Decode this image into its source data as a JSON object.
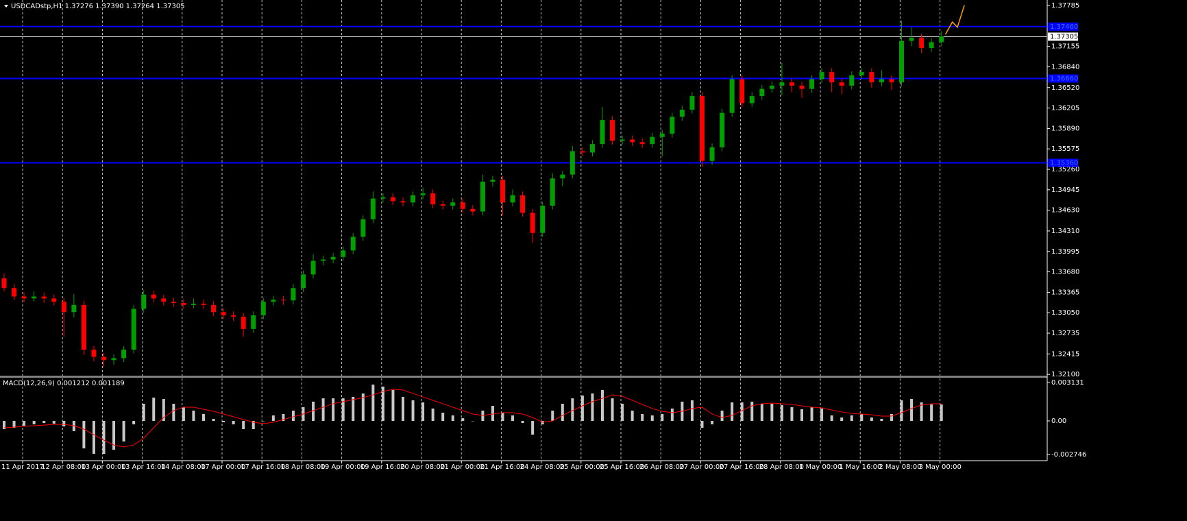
{
  "chart_data": [
    {
      "type": "candlestick",
      "title": "USDCADstp,H1  1.37276 1.37390 1.37264 1.37305",
      "ylim": [
        1.3208,
        1.3787
      ],
      "yticks": [
        1.37785,
        1.37155,
        {
          "value": 1.3684,
          "label": "1.36840"
        },
        {
          "value": 1.3652,
          "label": "1.36520"
        },
        1.36205,
        {
          "value": 1.3589,
          "label": "1.35890"
        },
        1.35575,
        {
          "value": 1.3526,
          "label": "1.35260"
        },
        1.34945,
        {
          "value": 1.3463,
          "label": "1.34630"
        },
        {
          "value": 1.3431,
          "label": "1.34310"
        },
        1.33995,
        {
          "value": 1.3368,
          "label": "1.33680"
        },
        1.33365,
        {
          "value": 1.3305,
          "label": "1.33050"
        },
        1.32735,
        1.32415,
        {
          "value": 1.321,
          "label": "1.32100"
        }
      ],
      "xticks": [
        {
          "value": 0,
          "label": "11 Apr 2017"
        },
        {
          "value": 4,
          "label": "12 Apr 08:00"
        },
        {
          "value": 8,
          "label": "13 Apr 00:00"
        },
        {
          "value": 12,
          "label": "13 Apr 16:00"
        },
        {
          "value": 16,
          "label": "14 Apr 08:00"
        },
        {
          "value": 20,
          "label": "17 Apr 00:00"
        },
        {
          "value": 24,
          "label": "17 Apr 16:00"
        },
        {
          "value": 28,
          "label": "18 Apr 08:00"
        },
        {
          "value": 32,
          "label": "19 Apr 00:00"
        },
        {
          "value": 36,
          "label": "19 Apr 16:00"
        },
        {
          "value": 40,
          "label": "20 Apr 08:00"
        },
        {
          "value": 44,
          "label": "21 Apr 00:00"
        },
        {
          "value": 48,
          "label": "21 Apr 16:00"
        },
        {
          "value": 52,
          "label": "24 Apr 08:00"
        },
        {
          "value": 56,
          "label": "25 Apr 00:00"
        },
        {
          "value": 60,
          "label": "25 Apr 16:00"
        },
        {
          "value": 64,
          "label": "26 Apr 08:00"
        },
        {
          "value": 68,
          "label": "27 Apr 00:00"
        },
        {
          "value": 72,
          "label": "27 Apr 16:00"
        },
        {
          "value": 76,
          "label": "28 Apr 08:00"
        },
        {
          "value": 80,
          "label": "1 May 00:00"
        },
        {
          "value": 84,
          "label": "1 May 16:00"
        },
        {
          "value": 88,
          "label": "2 May 08:00"
        },
        {
          "value": 92,
          "label": "3 May 00:00"
        }
      ],
      "grid": true,
      "up_color": "#00a000",
      "down_color": "#ff0000",
      "ohlc": [
        [
          1.3358,
          1.3366,
          1.3338,
          1.3343
        ],
        [
          1.3343,
          1.3349,
          1.3325,
          1.333
        ],
        [
          1.333,
          1.3336,
          1.3321,
          1.3327
        ],
        [
          1.3327,
          1.3338,
          1.3322,
          1.333
        ],
        [
          1.333,
          1.3336,
          1.332,
          1.3327
        ],
        [
          1.3327,
          1.3333,
          1.3316,
          1.3322
        ],
        [
          1.3322,
          1.3328,
          1.3268,
          1.3306
        ],
        [
          1.3306,
          1.3334,
          1.3298,
          1.3317
        ],
        [
          1.3317,
          1.3323,
          1.324,
          1.3248
        ],
        [
          1.3248,
          1.3254,
          1.323,
          1.3237
        ],
        [
          1.3237,
          1.3243,
          1.3222,
          1.3232
        ],
        [
          1.3232,
          1.3241,
          1.3225,
          1.3235
        ],
        [
          1.3235,
          1.3254,
          1.3229,
          1.3248
        ],
        [
          1.3248,
          1.3317,
          1.3242,
          1.3311
        ],
        [
          1.3311,
          1.334,
          1.3305,
          1.3333
        ],
        [
          1.3333,
          1.3339,
          1.3321,
          1.3327
        ],
        [
          1.3327,
          1.3333,
          1.3316,
          1.3322
        ],
        [
          1.3322,
          1.3328,
          1.3314,
          1.332
        ],
        [
          1.332,
          1.3326,
          1.3311,
          1.3317
        ],
        [
          1.3317,
          1.3327,
          1.3312,
          1.3319
        ],
        [
          1.3319,
          1.3325,
          1.3311,
          1.3317
        ],
        [
          1.3317,
          1.3323,
          1.33,
          1.3306
        ],
        [
          1.3306,
          1.3312,
          1.3295,
          1.3301
        ],
        [
          1.3301,
          1.3307,
          1.3292,
          1.3299
        ],
        [
          1.3299,
          1.3305,
          1.3268,
          1.328
        ],
        [
          1.328,
          1.3307,
          1.3274,
          1.3301
        ],
        [
          1.3301,
          1.3328,
          1.3295,
          1.3322
        ],
        [
          1.3322,
          1.3331,
          1.3316,
          1.3325
        ],
        [
          1.3325,
          1.3331,
          1.3317,
          1.3324
        ],
        [
          1.3324,
          1.3349,
          1.3318,
          1.3343
        ],
        [
          1.3343,
          1.337,
          1.3337,
          1.3364
        ],
        [
          1.3364,
          1.3395,
          1.3358,
          1.3385
        ],
        [
          1.3385,
          1.3393,
          1.3378,
          1.3387
        ],
        [
          1.3387,
          1.3397,
          1.3381,
          1.3391
        ],
        [
          1.3391,
          1.3407,
          1.3385,
          1.3401
        ],
        [
          1.3401,
          1.3428,
          1.3395,
          1.3422
        ],
        [
          1.3422,
          1.3455,
          1.3416,
          1.3449
        ],
        [
          1.3449,
          1.3492,
          1.3443,
          1.3481
        ],
        [
          1.3481,
          1.3489,
          1.3475,
          1.3483
        ],
        [
          1.3483,
          1.3489,
          1.3471,
          1.3477
        ],
        [
          1.3477,
          1.3483,
          1.3469,
          1.3475
        ],
        [
          1.3475,
          1.3492,
          1.3469,
          1.3486
        ],
        [
          1.3486,
          1.3498,
          1.348,
          1.3489
        ],
        [
          1.3489,
          1.3495,
          1.3466,
          1.3472
        ],
        [
          1.3472,
          1.3478,
          1.3464,
          1.347
        ],
        [
          1.347,
          1.3481,
          1.3464,
          1.3475
        ],
        [
          1.3475,
          1.3481,
          1.3459,
          1.3465
        ],
        [
          1.3465,
          1.3471,
          1.3455,
          1.3461
        ],
        [
          1.3461,
          1.3518,
          1.3455,
          1.3507
        ],
        [
          1.3507,
          1.3516,
          1.3499,
          1.351
        ],
        [
          1.351,
          1.3516,
          1.3455,
          1.3475
        ],
        [
          1.3475,
          1.3495,
          1.3469,
          1.3486
        ],
        [
          1.3486,
          1.3492,
          1.3453,
          1.3459
        ],
        [
          1.3459,
          1.3465,
          1.3413,
          1.3428
        ],
        [
          1.3428,
          1.3476,
          1.3422,
          1.347
        ],
        [
          1.347,
          1.352,
          1.3464,
          1.3512
        ],
        [
          1.3512,
          1.3524,
          1.35,
          1.3518
        ],
        [
          1.3518,
          1.3562,
          1.3512,
          1.3554
        ],
        [
          1.3554,
          1.356,
          1.3546,
          1.3552
        ],
        [
          1.3552,
          1.3571,
          1.3546,
          1.3565
        ],
        [
          1.3565,
          1.3622,
          1.3559,
          1.3602
        ],
        [
          1.3602,
          1.3608,
          1.3564,
          1.357
        ],
        [
          1.357,
          1.3578,
          1.3564,
          1.3572
        ],
        [
          1.3572,
          1.3578,
          1.3562,
          1.3568
        ],
        [
          1.3568,
          1.3574,
          1.3559,
          1.3565
        ],
        [
          1.3565,
          1.3582,
          1.3559,
          1.3576
        ],
        [
          1.3576,
          1.3587,
          1.3546,
          1.3581
        ],
        [
          1.3581,
          1.3613,
          1.3575,
          1.3607
        ],
        [
          1.3607,
          1.3624,
          1.3601,
          1.3618
        ],
        [
          1.3618,
          1.3645,
          1.3612,
          1.3639
        ],
        [
          1.3639,
          1.3645,
          1.353,
          1.3539
        ],
        [
          1.3539,
          1.3566,
          1.3533,
          1.356
        ],
        [
          1.356,
          1.3619,
          1.3554,
          1.3613
        ],
        [
          1.3613,
          1.3671,
          1.3607,
          1.3665
        ],
        [
          1.3665,
          1.3671,
          1.3622,
          1.3628
        ],
        [
          1.3628,
          1.3645,
          1.3622,
          1.3639
        ],
        [
          1.3639,
          1.3656,
          1.3633,
          1.365
        ],
        [
          1.365,
          1.3661,
          1.3644,
          1.3655
        ],
        [
          1.3655,
          1.369,
          1.364,
          1.366
        ],
        [
          1.366,
          1.3666,
          1.3645,
          1.3655
        ],
        [
          1.3655,
          1.3661,
          1.3636,
          1.365
        ],
        [
          1.365,
          1.3671,
          1.3644,
          1.3665
        ],
        [
          1.3665,
          1.3682,
          1.3659,
          1.3676
        ],
        [
          1.3676,
          1.3682,
          1.3645,
          1.366
        ],
        [
          1.366,
          1.3666,
          1.3642,
          1.3655
        ],
        [
          1.3655,
          1.3677,
          1.3649,
          1.3671
        ],
        [
          1.3671,
          1.3682,
          1.3665,
          1.3676
        ],
        [
          1.3676,
          1.3682,
          1.3652,
          1.366
        ],
        [
          1.366,
          1.3679,
          1.3654,
          1.3665
        ],
        [
          1.3665,
          1.3671,
          1.3648,
          1.366
        ],
        [
          1.366,
          1.3755,
          1.3654,
          1.3724
        ],
        [
          1.3724,
          1.3745,
          1.3716,
          1.3729
        ],
        [
          1.3729,
          1.3735,
          1.3705,
          1.3713
        ],
        [
          1.3713,
          1.3728,
          1.3707,
          1.3722
        ],
        [
          1.3722,
          1.3739,
          1.3716,
          1.3731
        ]
      ],
      "hlines": [
        {
          "value": 1.3746,
          "label": "1.37460",
          "color": "#0000ff"
        },
        {
          "value": 1.3666,
          "label": "1.36660",
          "color": "#0000ff"
        },
        {
          "value": 1.3536,
          "label": "1.35360",
          "color": "#0000ff"
        }
      ],
      "bid": {
        "value": 1.37305,
        "label": "1.37305",
        "color": "#c0c0c0"
      },
      "projection": {
        "x": [
          94.4,
          95.1,
          95.6,
          96.3
        ],
        "values": [
          1.3734,
          1.3753,
          1.3745,
          1.3779
        ],
        "color": "#ffa500"
      }
    },
    {
      "type": "macd",
      "title": "MACD(12,26,9) 0.001212 0.001189",
      "ylim": [
        -0.00324,
        0.00352
      ],
      "yticks": [
        0.003131,
        {
          "value": 0,
          "label": "0.00"
        },
        -0.002746
      ],
      "histogram": {
        "color": "#c8c8c8",
        "values": [
          -0.00067,
          -0.00056,
          -0.00039,
          -0.00028,
          -0.00017,
          -0.00022,
          -0.00045,
          -0.00084,
          -0.00224,
          -0.00268,
          -0.00268,
          -0.00235,
          -0.00168,
          -0.00028,
          0.0014,
          0.0019,
          0.00179,
          0.0014,
          0.00112,
          0.00084,
          0.00056,
          0.00017,
          -0.00011,
          -0.00028,
          -0.00067,
          -0.00067,
          0,
          0.00045,
          0.00056,
          0.00084,
          0.00112,
          0.00157,
          0.00184,
          0.00184,
          0.00184,
          0.00196,
          0.00224,
          0.00296,
          0.0028,
          0.00252,
          0.00196,
          0.00168,
          0.00151,
          0.00101,
          0.00067,
          0.00045,
          0.00022,
          0,
          0.00084,
          0.00123,
          0.00067,
          0.00045,
          -0.00017,
          -0.00112,
          -0.00028,
          0.00084,
          0.0014,
          0.00184,
          0.00207,
          0.00224,
          0.00252,
          0.00184,
          0.0014,
          0.00084,
          0.00056,
          0.00045,
          0.00056,
          0.00101,
          0.00157,
          0.00168,
          -0.00056,
          -0.00028,
          0.00084,
          0.00151,
          0.00151,
          0.00157,
          0.0014,
          0.0014,
          0.00129,
          0.00112,
          0.00095,
          0.00112,
          0.00101,
          0.00045,
          0.00028,
          0.00045,
          0.00056,
          0.00028,
          0.00017,
          0.00056,
          0.00168,
          0.00179,
          0.00151,
          0.00134,
          0.00134
        ]
      },
      "signal": {
        "color": "#ff0000",
        "values": [
          -0.00056,
          -0.0005,
          -0.00045,
          -0.00039,
          -0.00034,
          -0.00028,
          -0.00028,
          -0.00039,
          -0.00067,
          -0.00112,
          -0.00157,
          -0.00196,
          -0.00212,
          -0.00196,
          -0.0014,
          -0.00056,
          0.00028,
          0.00084,
          0.00112,
          0.00112,
          0.00095,
          0.00078,
          0.00056,
          0.00034,
          0.00011,
          -0.00011,
          -0.00022,
          -0.00011,
          0.00011,
          0.00034,
          0.00056,
          0.00084,
          0.00112,
          0.0014,
          0.00157,
          0.00173,
          0.0019,
          0.00212,
          0.0024,
          0.00257,
          0.00252,
          0.00224,
          0.00196,
          0.00168,
          0.0014,
          0.00112,
          0.00084,
          0.00056,
          0.00045,
          0.00056,
          0.00067,
          0.00067,
          0.00056,
          0.00028,
          -0.00011,
          0,
          0.00045,
          0.00084,
          0.00123,
          0.00157,
          0.00184,
          0.00212,
          0.00201,
          0.00168,
          0.00134,
          0.00101,
          0.00078,
          0.00067,
          0.00078,
          0.00101,
          0.00112,
          0.00056,
          0.00028,
          0.00045,
          0.00084,
          0.00123,
          0.0014,
          0.00145,
          0.0014,
          0.00134,
          0.00123,
          0.00112,
          0.00106,
          0.00089,
          0.00073,
          0.00061,
          0.00056,
          0.0005,
          0.00039,
          0.00039,
          0.00067,
          0.00101,
          0.00129,
          0.0014,
          0.0014
        ]
      }
    }
  ]
}
